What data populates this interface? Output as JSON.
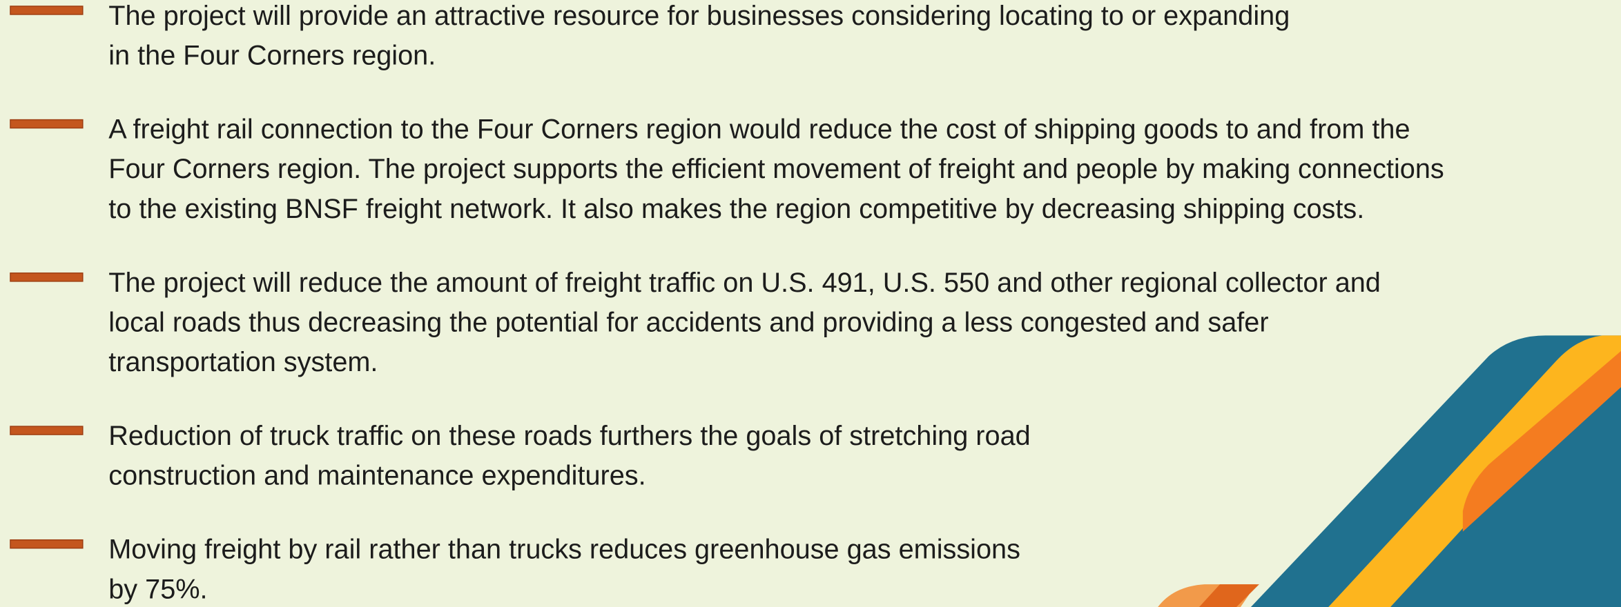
{
  "bullets": [
    [
      "The project will provide an attractive resource for businesses considering locating to or expanding",
      "in the Four Corners region."
    ],
    [
      "A freight rail connection to the Four Corners region would reduce the cost of shipping goods to and from the",
      "Four Corners region. The project supports the efficient movement of freight and people by making connections",
      "to the existing BNSF freight network. It also makes the region competitive by decreasing shipping costs."
    ],
    [
      "The project will reduce the amount of freight traffic on U.S. 491, U.S. 550 and other regional collector and",
      "local roads thus decreasing the potential for accidents and providing a less congested and safer",
      "transportation system."
    ],
    [
      "Reduction of truck traffic on these roads furthers the goals of stretching road",
      "construction and maintenance expenditures."
    ],
    [
      "Moving freight by rail rather than trucks reduces greenhouse gas emissions",
      "by 75%."
    ]
  ]
}
